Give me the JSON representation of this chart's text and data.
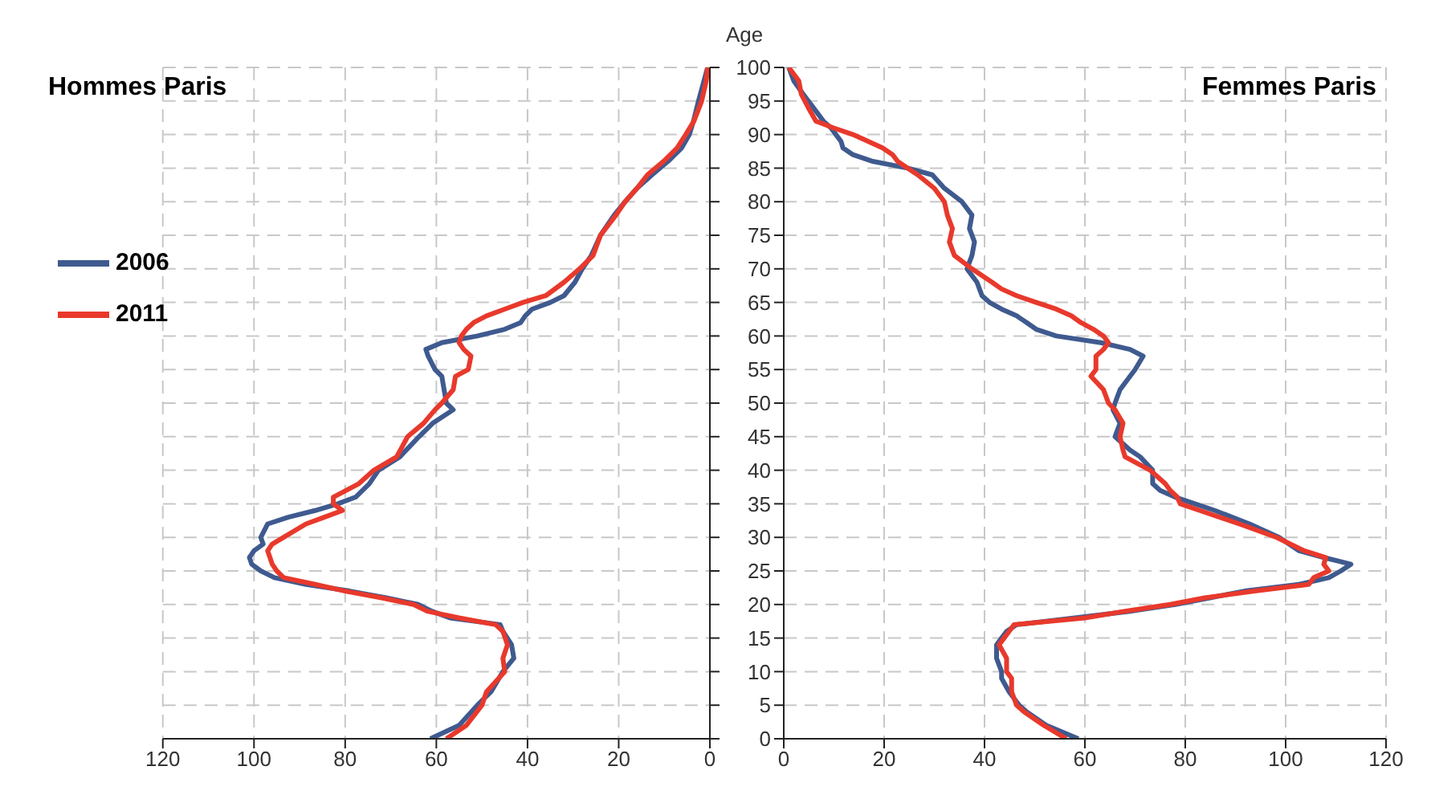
{
  "chart_data": [
    {
      "type": "line",
      "title": "Hommes Paris",
      "xlim": [
        120,
        0
      ],
      "xticks": [
        120,
        100,
        80,
        60,
        40,
        20,
        0
      ],
      "ylim": [
        0,
        100
      ],
      "yticks": [
        0,
        5,
        10,
        15,
        20,
        25,
        30,
        35,
        40,
        45,
        50,
        55,
        60,
        65,
        70,
        75,
        80,
        85,
        90,
        95,
        100
      ],
      "grid": true,
      "legend": "left",
      "tick_labels": "x",
      "line_style": "solid",
      "marker": "none",
      "series": [
        {
          "name": "2006",
          "color": "#3f5a8f",
          "x": [
            61.3,
            55,
            51,
            48,
            45.4,
            43,
            43.5,
            45.4,
            46,
            57,
            61,
            64,
            71,
            79,
            88.6,
            95.5,
            98.5,
            100.5,
            101,
            100,
            98,
            98.5,
            97,
            92.5,
            86.6,
            81.6,
            77.7,
            74.7,
            72.7,
            68,
            63.8,
            60.8,
            56.3,
            57.8,
            58.3,
            58.8,
            60.3,
            61.8,
            62.3,
            58.8,
            51,
            45,
            41.5,
            40.5,
            39,
            35,
            32,
            29.6,
            28,
            26,
            24,
            21,
            18.6,
            16,
            12.7,
            9.2,
            6.2,
            4.5,
            3.6,
            2.5,
            1.3,
            0.5
          ],
          "values": [
            0,
            2,
            5,
            7,
            10,
            12,
            14,
            16,
            17,
            18,
            19,
            20,
            21,
            22,
            23,
            24,
            25,
            26,
            27,
            28,
            29,
            30,
            32,
            33,
            34,
            35,
            36,
            38,
            40,
            42,
            45,
            47,
            49,
            50,
            52,
            54,
            55,
            57,
            58,
            59,
            60,
            61,
            62,
            63,
            64,
            65,
            66,
            68,
            70,
            72,
            75,
            78,
            80,
            82,
            84,
            86,
            88,
            90,
            92,
            95,
            98,
            100
          ]
        },
        {
          "name": "2011",
          "color": "#e8392c",
          "x": [
            57.8,
            53.4,
            50,
            49,
            45,
            45.4,
            44.4,
            45.4,
            47,
            55,
            62,
            65,
            72,
            80,
            86.6,
            93.5,
            95,
            96,
            96.5,
            97,
            96,
            93.5,
            88.6,
            84.6,
            80.6,
            82.6,
            82.6,
            77,
            73.7,
            68.7,
            66.3,
            62.8,
            60.3,
            58.8,
            56.3,
            55.8,
            53,
            52.4,
            54,
            55,
            54.5,
            53.4,
            51.8,
            49,
            45,
            41,
            36,
            32,
            28.6,
            25.6,
            24,
            20.6,
            18.6,
            16,
            13.7,
            10.2,
            7.2,
            5.3,
            3.5,
            1.8,
            0.8,
            0.5
          ],
          "values": [
            0,
            2,
            5,
            7,
            10,
            12,
            14,
            16,
            17,
            18,
            19,
            20,
            21,
            22,
            23,
            24,
            25,
            26,
            27,
            28,
            29,
            30,
            32,
            33,
            34,
            35,
            36,
            38,
            40,
            42,
            45,
            47,
            49,
            50,
            52,
            54,
            55,
            57,
            58,
            59,
            60,
            61,
            62,
            63,
            64,
            65,
            66,
            68,
            70,
            72,
            75,
            78,
            80,
            82,
            84,
            86,
            88,
            90,
            92,
            95,
            98,
            100
          ]
        }
      ]
    },
    {
      "type": "line",
      "title": "Femmes Paris",
      "ylabel": "Age",
      "xlim": [
        0,
        120
      ],
      "xticks": [
        0,
        20,
        40,
        60,
        80,
        100,
        120
      ],
      "ylim": [
        0,
        100
      ],
      "yticks": [
        0,
        5,
        10,
        15,
        20,
        25,
        30,
        35,
        40,
        45,
        50,
        55,
        60,
        65,
        70,
        75,
        80,
        85,
        90,
        95,
        100
      ],
      "grid": true,
      "line_style": "solid",
      "marker": "none",
      "series": [
        {
          "color": "#3f5a8f",
          "x": [
            58.7,
            52.3,
            48.4,
            46.9,
            44.9,
            43.4,
            43.4,
            42.4,
            42.4,
            43.4,
            44.4,
            46.4,
            58,
            69,
            78,
            84.9,
            91.8,
            102.7,
            108.6,
            111,
            113,
            107.6,
            102.7,
            98.7,
            92.8,
            85.9,
            81.9,
            78,
            75,
            73.5,
            73.5,
            71,
            69,
            66,
            67,
            65.6,
            66,
            67,
            69,
            70,
            71.6,
            69,
            63.2,
            54.3,
            50.3,
            48.4,
            46.4,
            43.4,
            41,
            39.5,
            39,
            38.5,
            36.5,
            37.5,
            38,
            37,
            37.5,
            35.5,
            32,
            29.6,
            24.7,
            17.8,
            13.8,
            11.8,
            11.4,
            10.4,
            9.4,
            7.9,
            5.9,
            3.9,
            2,
            1
          ],
          "values": [
            0,
            2,
            4,
            5,
            7,
            9,
            10,
            12,
            14,
            15,
            16,
            17,
            18,
            19,
            20,
            21,
            22,
            23,
            24,
            25,
            26,
            27,
            28,
            30,
            32,
            34,
            35,
            36,
            37,
            38,
            40,
            42,
            43,
            45,
            47,
            49,
            50,
            52,
            54,
            55,
            57,
            58,
            59,
            60,
            61,
            62,
            63,
            64,
            65,
            66,
            67,
            68,
            70,
            72,
            74,
            76,
            78,
            80,
            82,
            84,
            85,
            86,
            87,
            88,
            89,
            90,
            91,
            92,
            94,
            96,
            98,
            100
          ]
        },
        {
          "color": "#e8392c",
          "x": [
            56.3,
            51.8,
            47.9,
            46.4,
            45.4,
            45.4,
            44.4,
            44.4,
            42.9,
            43.9,
            44.9,
            45.9,
            60,
            68,
            77,
            83.9,
            93.8,
            104.6,
            105.6,
            108.6,
            107.6,
            108,
            103.7,
            98.2,
            90.8,
            82.9,
            79,
            78.4,
            77,
            76,
            73,
            68,
            67.6,
            67,
            67.6,
            66,
            64.7,
            63.7,
            61.2,
            62.2,
            62.2,
            63.7,
            64.7,
            63.7,
            61.7,
            59.2,
            57.3,
            54.3,
            50.3,
            46.4,
            43.4,
            41.5,
            37.5,
            34,
            33,
            33.6,
            32.6,
            32,
            30,
            26.7,
            24.7,
            22.7,
            21.7,
            19.7,
            16.8,
            13.8,
            9.9,
            6.4,
            4.9,
            3.5,
            3,
            1
          ],
          "values": [
            0,
            2,
            4,
            5,
            7,
            9,
            10,
            12,
            14,
            15,
            16,
            17,
            18,
            19,
            20,
            21,
            22,
            23,
            24,
            25,
            26,
            27,
            28,
            30,
            32,
            34,
            35,
            36,
            37,
            38,
            40,
            42,
            43,
            45,
            47,
            49,
            50,
            52,
            54,
            55,
            57,
            58,
            59,
            60,
            61,
            62,
            63,
            64,
            65,
            66,
            67,
            68,
            70,
            72,
            74,
            76,
            78,
            80,
            82,
            84,
            85,
            86,
            87,
            88,
            89,
            90,
            91,
            92,
            94,
            96,
            98,
            100
          ]
        }
      ]
    }
  ]
}
